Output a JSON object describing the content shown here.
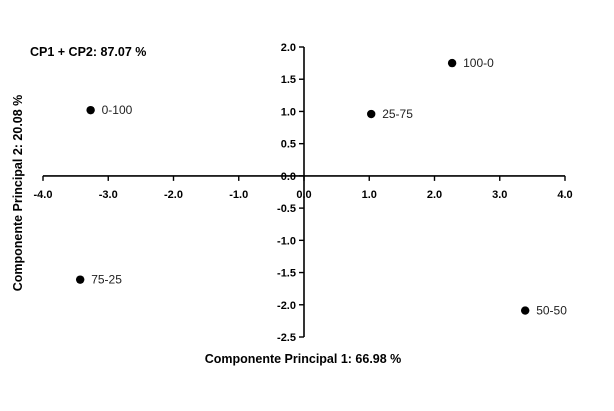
{
  "chart_data": {
    "type": "scatter",
    "title": "",
    "annotation": "CP1 + CP2: 87.07 %",
    "xlabel": "Componente Principal 1: 66.98 %",
    "ylabel": "Componente Principal 2: 20.08 %",
    "xlim": [
      -4.0,
      4.0
    ],
    "ylim": [
      -2.5,
      2.0
    ],
    "xticks": [
      "-4.0",
      "-3.0",
      "-2.0",
      "-1.0",
      "0.0",
      "1.0",
      "2.0",
      "3.0",
      "4.0"
    ],
    "yticks": [
      "-2.5",
      "-2.0",
      "-1.5",
      "-1.0",
      "-0.5",
      "0.0",
      "0.5",
      "1.0",
      "1.5",
      "2.0"
    ],
    "grid": false,
    "marker_color": "#000000",
    "points": [
      {
        "label": "100-0",
        "x": 2.27,
        "y": 1.75
      },
      {
        "label": "0-100",
        "x": -3.27,
        "y": 1.02
      },
      {
        "label": "25-75",
        "x": 1.03,
        "y": 0.96
      },
      {
        "label": "75-25",
        "x": -3.43,
        "y": -1.61
      },
      {
        "label": "50-50",
        "x": 3.39,
        "y": -2.09
      }
    ]
  }
}
